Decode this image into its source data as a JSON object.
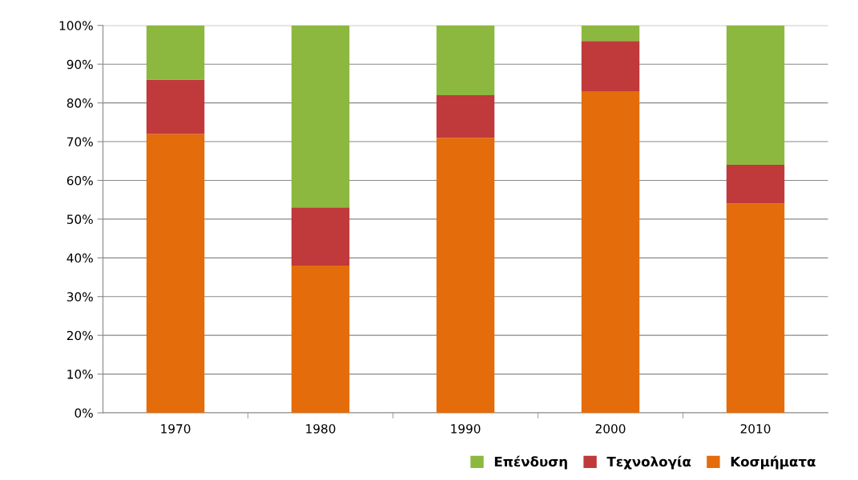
{
  "chart_data": {
    "type": "bar",
    "stacked": true,
    "categories": [
      "1970",
      "1980",
      "1990",
      "2000",
      "2010"
    ],
    "series": [
      {
        "name": "Κοσμήματα",
        "color": "#e46c0a",
        "values": [
          72,
          38,
          71,
          83,
          54
        ]
      },
      {
        "name": "Τεχνολογία",
        "color": "#c0393b",
        "values": [
          14,
          15,
          11,
          13,
          10
        ]
      },
      {
        "name": "Επένδυση",
        "color": "#8cb83f",
        "values": [
          14,
          47,
          18,
          4,
          36
        ]
      }
    ],
    "ylim": [
      0,
      100
    ],
    "yticks": [
      {
        "value": 0,
        "label": "0%"
      },
      {
        "value": 10,
        "label": "10%"
      },
      {
        "value": 20,
        "label": "20%"
      },
      {
        "value": 30,
        "label": "30%"
      },
      {
        "value": 40,
        "label": "40%"
      },
      {
        "value": 50,
        "label": "50%"
      },
      {
        "value": 60,
        "label": "60%"
      },
      {
        "value": 70,
        "label": "70%"
      },
      {
        "value": 80,
        "label": "80%"
      },
      {
        "value": 90,
        "label": "90%"
      },
      {
        "value": 100,
        "label": "100%"
      }
    ],
    "grid": "y",
    "legend": "bottom right"
  }
}
